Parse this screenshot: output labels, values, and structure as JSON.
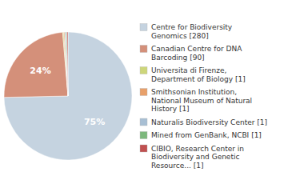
{
  "chart_data": {
    "type": "pie",
    "categories": [
      "Centre for Biodiversity\nGenomics [280]",
      "Canadian Centre for DNA\nBarcoding [90]",
      "Universita di Firenze,\nDepartment of Biology [1]",
      "Smithsonian Institution,\nNational Museum of Natural\nHistory [1]",
      "Naturalis Biodiversity Center [1]",
      "Mined from GenBank, NCBI [1]",
      "CIBIO, Research Center in\nBiodiversity and Genetic\nResource... [1]"
    ],
    "values": [
      74.66666666666667,
      24,
      0.26666666666666666,
      0.26666666666666666,
      0.26666666666666666,
      0.26666666666666666,
      0.26666666666666666
    ],
    "value_labels": [
      "75%",
      "24%",
      null,
      null,
      null,
      null,
      null
    ],
    "colors": [
      "#c5d3e0",
      "#d4907a",
      "#cdd67a",
      "#e8a06a",
      "#a8bfd4",
      "#7db87d",
      "#c05050"
    ],
    "data_labels": true,
    "legend": "right"
  }
}
